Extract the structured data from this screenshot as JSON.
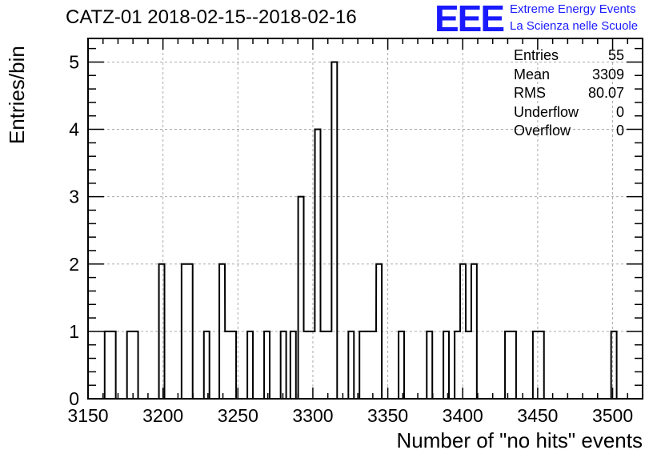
{
  "title": "CATZ-01 2018-02-15--2018-02-16",
  "logo": {
    "mark": "EEE",
    "line1": "Extreme Energy Events",
    "line2": "La Scienza nelle Scuole",
    "color": "#1a1aff"
  },
  "stats": {
    "entries_label": "Entries",
    "entries_value": "55",
    "mean_label": "Mean",
    "mean_value": "3309",
    "rms_label": "RMS",
    "rms_value": "80.07",
    "underflow_label": "Underflow",
    "underflow_value": "0",
    "overflow_label": "Overflow",
    "overflow_value": "0"
  },
  "chart_data": {
    "type": "bar",
    "title": "CATZ-01 2018-02-15--2018-02-16",
    "xlabel": "Number of \"no hits\" events",
    "ylabel": "Entries/bin",
    "xlim": [
      3150,
      3520
    ],
    "ylim": [
      0,
      5.35
    ],
    "bin_width": 3.7,
    "grid": true,
    "xticks": [
      3150,
      3200,
      3250,
      3300,
      3350,
      3400,
      3450,
      3500
    ],
    "yticks": [
      0,
      1,
      2,
      3,
      4,
      5
    ],
    "bins": [
      {
        "x": 3161.1,
        "count": 1
      },
      {
        "x": 3164.8,
        "count": 1
      },
      {
        "x": 3176.0,
        "count": 1
      },
      {
        "x": 3179.7,
        "count": 1
      },
      {
        "x": 3197.3,
        "count": 2
      },
      {
        "x": 3212.4,
        "count": 2
      },
      {
        "x": 3216.1,
        "count": 2
      },
      {
        "x": 3227.3,
        "count": 1
      },
      {
        "x": 3237.6,
        "count": 2
      },
      {
        "x": 3241.4,
        "count": 1
      },
      {
        "x": 3245.1,
        "count": 1
      },
      {
        "x": 3256.3,
        "count": 1
      },
      {
        "x": 3267.5,
        "count": 1
      },
      {
        "x": 3278.5,
        "count": 1
      },
      {
        "x": 3285.0,
        "count": 1
      },
      {
        "x": 3290.2,
        "count": 3
      },
      {
        "x": 3293.9,
        "count": 1
      },
      {
        "x": 3297.6,
        "count": 1
      },
      {
        "x": 3301.4,
        "count": 4
      },
      {
        "x": 3305.1,
        "count": 1
      },
      {
        "x": 3308.8,
        "count": 1
      },
      {
        "x": 3312.5,
        "count": 5
      },
      {
        "x": 3323.7,
        "count": 1
      },
      {
        "x": 3331.1,
        "count": 1
      },
      {
        "x": 3334.8,
        "count": 1
      },
      {
        "x": 3338.5,
        "count": 1
      },
      {
        "x": 3342.3,
        "count": 2
      },
      {
        "x": 3357.2,
        "count": 1
      },
      {
        "x": 3376.0,
        "count": 1
      },
      {
        "x": 3387.1,
        "count": 1
      },
      {
        "x": 3394.6,
        "count": 1
      },
      {
        "x": 3398.3,
        "count": 2
      },
      {
        "x": 3402.0,
        "count": 1
      },
      {
        "x": 3405.7,
        "count": 2
      },
      {
        "x": 3428.2,
        "count": 1
      },
      {
        "x": 3431.9,
        "count": 1
      },
      {
        "x": 3446.8,
        "count": 1
      },
      {
        "x": 3450.5,
        "count": 1
      },
      {
        "x": 3499.0,
        "count": 1
      }
    ]
  }
}
